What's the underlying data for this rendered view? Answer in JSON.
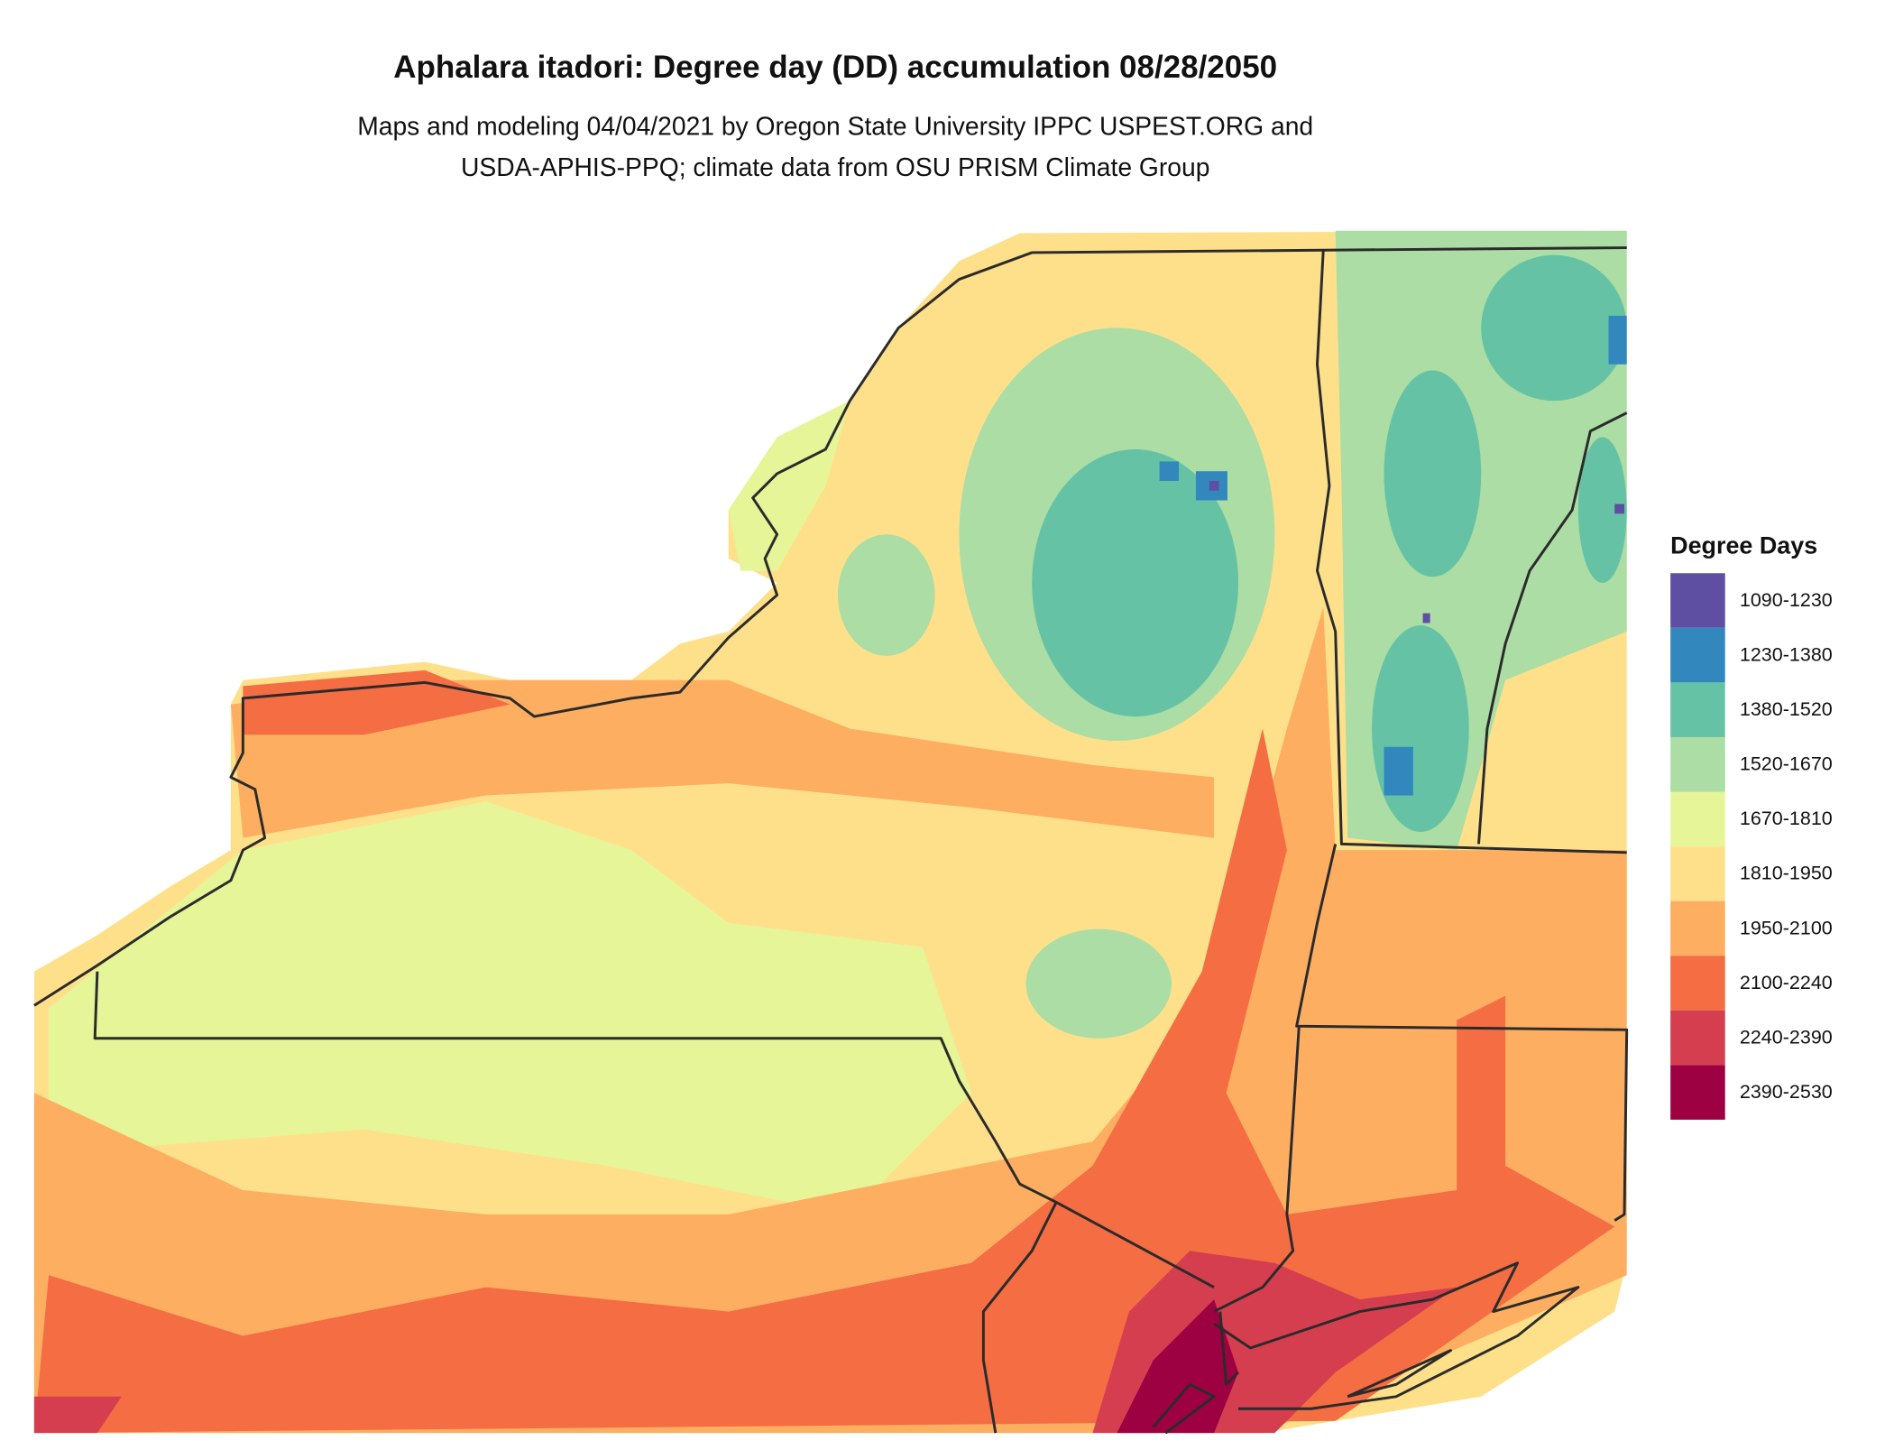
{
  "title": "Aphalara itadori: Degree day (DD) accumulation 08/28/2050",
  "subtitle": [
    "Maps and modeling 04/04/2021 by Oregon State University IPPC USPEST.ORG and",
    "USDA-APHIS-PPQ; climate data from OSU PRISM Climate Group"
  ],
  "legend": {
    "title": "Degree Days",
    "items": [
      {
        "label": "1090-1230",
        "color": "#5e4fa2"
      },
      {
        "label": "1230-1380",
        "color": "#3288bd"
      },
      {
        "label": "1380-1520",
        "color": "#66c2a5"
      },
      {
        "label": "1520-1670",
        "color": "#abdda4"
      },
      {
        "label": "1670-1810",
        "color": "#e6f598"
      },
      {
        "label": "1810-1950",
        "color": "#fee08b"
      },
      {
        "label": "1950-2100",
        "color": "#fdae61"
      },
      {
        "label": "2100-2240",
        "color": "#f46d43"
      },
      {
        "label": "2240-2390",
        "color": "#d53e4f"
      },
      {
        "label": "2390-2530",
        "color": "#9e0142"
      }
    ]
  }
}
